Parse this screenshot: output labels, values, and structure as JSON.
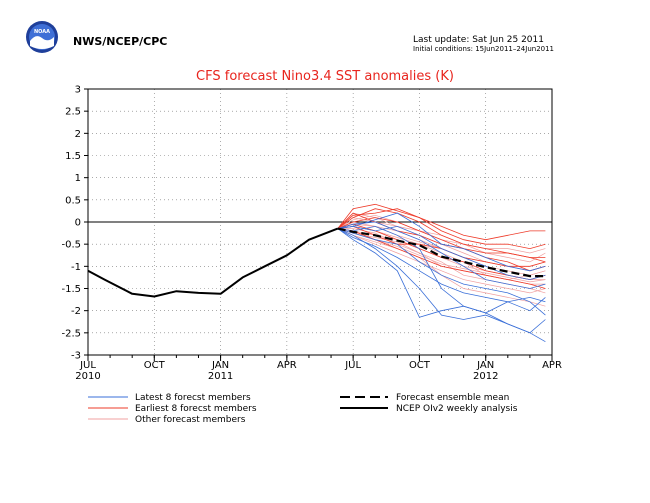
{
  "header": {
    "logo_text": "NOAA",
    "org": "NWS/NCEP/CPC",
    "last_update": "Last update: Sat Jun 25 2011",
    "initial_conditions": "Initial conditions: 15Jun2011–24Jun2011"
  },
  "colors": {
    "latest": "#3a6fd8",
    "earliest": "#ee3b2a",
    "other": "#f0a0a0",
    "mean": "#000000",
    "analysis": "#000000",
    "title": "#e8251e"
  },
  "chart_data": {
    "type": "line",
    "title": "CFS forecast Nino3.4 SST anomalies (K)",
    "ylim": [
      -3,
      3
    ],
    "yticks": [
      -3,
      -2.5,
      -2,
      -1.5,
      -1,
      -0.5,
      0,
      0.5,
      1,
      1.5,
      2,
      2.5,
      3
    ],
    "xlim_months": [
      0,
      21
    ],
    "xticks": [
      {
        "m": 0,
        "label": "JUL",
        "year": "2010"
      },
      {
        "m": 3,
        "label": "OCT",
        "year": ""
      },
      {
        "m": 6,
        "label": "JAN",
        "year": "2011"
      },
      {
        "m": 9,
        "label": "APR",
        "year": ""
      },
      {
        "m": 12,
        "label": "JUL",
        "year": ""
      },
      {
        "m": 15,
        "label": "OCT",
        "year": ""
      },
      {
        "m": 18,
        "label": "JAN",
        "year": "2012"
      },
      {
        "m": 21,
        "label": "APR",
        "year": ""
      }
    ],
    "grid": "dotted",
    "legend_placement": "bottom",
    "analysis": {
      "name": "NCEP OIv2 weekly analysis",
      "x": [
        0,
        0.75,
        2,
        3,
        4,
        5,
        6,
        7,
        8,
        9,
        10,
        11.3
      ],
      "y": [
        -1.1,
        -1.3,
        -1.62,
        -1.68,
        -1.56,
        -1.6,
        -1.62,
        -1.25,
        -1.0,
        -0.75,
        -0.4,
        -0.15
      ]
    },
    "ensemble_mean": {
      "name": "Forecast ensemble mean",
      "x": [
        11.3,
        12,
        13,
        14,
        15,
        16,
        17,
        18,
        19,
        20,
        20.7
      ],
      "y": [
        -0.15,
        -0.22,
        -0.3,
        -0.42,
        -0.52,
        -0.78,
        -0.9,
        -1.02,
        -1.12,
        -1.22,
        -1.22
      ]
    },
    "members": {
      "x": [
        11.3,
        12,
        13,
        14,
        15,
        16,
        17,
        18,
        19,
        20,
        20.7
      ],
      "latest": {
        "name": "Latest 8 forecst members",
        "series": [
          [
            -0.15,
            -0.4,
            -0.7,
            -1.1,
            -2.15,
            -2.0,
            -1.9,
            -2.05,
            -2.3,
            -2.5,
            -2.7
          ],
          [
            -0.15,
            -0.3,
            -0.6,
            -1.0,
            -1.5,
            -2.1,
            -2.2,
            -2.1,
            -2.3,
            -2.5,
            -2.2
          ],
          [
            -0.15,
            -0.2,
            -0.1,
            -0.3,
            -0.6,
            -1.5,
            -1.9,
            -2.05,
            -1.8,
            -1.7,
            -1.8
          ],
          [
            -0.15,
            -0.1,
            0.05,
            0.2,
            -0.1,
            -0.5,
            -0.6,
            -0.8,
            -1.0,
            -1.1,
            -1.0
          ],
          [
            -0.15,
            -0.25,
            -0.4,
            -0.5,
            -0.9,
            -1.2,
            -1.4,
            -1.5,
            -1.6,
            -1.8,
            -2.1
          ],
          [
            -0.15,
            -0.1,
            -0.2,
            -0.1,
            -0.3,
            -0.6,
            -0.8,
            -1.0,
            -1.2,
            -1.3,
            -1.2
          ],
          [
            -0.15,
            -0.35,
            -0.55,
            -0.8,
            -1.1,
            -1.4,
            -1.6,
            -1.7,
            -1.8,
            -2.0,
            -1.7
          ],
          [
            -0.15,
            -0.05,
            0.0,
            -0.2,
            -0.4,
            -0.7,
            -1.0,
            -1.3,
            -1.4,
            -1.5,
            -1.4
          ]
        ]
      },
      "earliest": {
        "name": "Earliest 8 forecst members",
        "series": [
          [
            -0.15,
            0.1,
            0.3,
            0.2,
            0.0,
            -0.3,
            -0.5,
            -0.6,
            -0.7,
            -0.8,
            -0.8
          ],
          [
            -0.15,
            0.3,
            0.4,
            0.25,
            0.1,
            -0.2,
            -0.4,
            -0.5,
            -0.5,
            -0.6,
            -0.5
          ],
          [
            -0.15,
            0.0,
            0.1,
            0.0,
            -0.2,
            -0.4,
            -0.6,
            -0.7,
            -0.7,
            -0.8,
            -0.9
          ],
          [
            -0.15,
            -0.1,
            -0.3,
            -0.5,
            -0.5,
            -0.6,
            -0.8,
            -0.9,
            -1.0,
            -1.0,
            -0.9
          ],
          [
            -0.15,
            0.2,
            0.0,
            -0.2,
            -0.3,
            -0.5,
            -0.6,
            -0.8,
            -0.9,
            -1.1,
            -1.0
          ],
          [
            -0.15,
            -0.2,
            -0.4,
            -0.6,
            -0.8,
            -1.0,
            -1.1,
            -1.2,
            -1.3,
            -1.4,
            -1.5
          ],
          [
            -0.15,
            0.15,
            0.2,
            0.3,
            0.1,
            -0.1,
            -0.3,
            -0.4,
            -0.3,
            -0.2,
            -0.2
          ],
          [
            -0.15,
            -0.05,
            -0.2,
            -0.4,
            -0.6,
            -0.8,
            -0.9,
            -1.1,
            -1.2,
            -1.3,
            -1.2
          ]
        ]
      },
      "other": {
        "name": "Other forecast members",
        "series": [
          [
            -0.15,
            -0.2,
            -0.3,
            -0.4,
            -0.6,
            -0.8,
            -1.0,
            -1.1,
            -1.2,
            -1.3,
            -1.3
          ],
          [
            -0.15,
            0.0,
            -0.1,
            -0.2,
            -0.4,
            -0.6,
            -0.8,
            -1.0,
            -1.1,
            -1.2,
            -1.1
          ],
          [
            -0.15,
            -0.3,
            -0.5,
            -0.7,
            -0.9,
            -1.1,
            -1.3,
            -1.4,
            -1.5,
            -1.6,
            -1.5
          ],
          [
            -0.15,
            0.1,
            0.0,
            -0.1,
            -0.3,
            -0.5,
            -0.7,
            -0.9,
            -1.0,
            -1.0,
            -0.9
          ],
          [
            -0.15,
            -0.1,
            -0.2,
            -0.35,
            -0.5,
            -0.7,
            -0.9,
            -1.2,
            -1.3,
            -1.4,
            -1.4
          ],
          [
            -0.15,
            -0.25,
            -0.35,
            -0.45,
            -0.7,
            -0.9,
            -1.2,
            -1.3,
            -1.4,
            -1.5,
            -1.6
          ],
          [
            -0.15,
            0.05,
            0.15,
            0.0,
            -0.2,
            -0.4,
            -0.5,
            -0.7,
            -0.8,
            -0.9,
            -0.7
          ],
          [
            -0.15,
            -0.15,
            -0.25,
            -0.5,
            -0.7,
            -1.0,
            -1.1,
            -1.2,
            -1.3,
            -1.2,
            -1.1
          ],
          [
            -0.15,
            -0.05,
            -0.1,
            -0.3,
            -0.45,
            -0.6,
            -0.8,
            -0.9,
            -1.0,
            -1.1,
            -1.0
          ],
          [
            -0.15,
            -0.3,
            -0.45,
            -0.6,
            -0.8,
            -1.2,
            -1.5,
            -1.6,
            -1.7,
            -1.8,
            -1.9
          ],
          [
            -0.15,
            0.2,
            0.1,
            -0.1,
            -0.2,
            -0.3,
            -0.5,
            -0.6,
            -0.6,
            -0.7,
            -0.6
          ],
          [
            -0.15,
            -0.2,
            -0.4,
            -0.55,
            -0.75,
            -0.95,
            -1.05,
            -1.15,
            -1.25,
            -1.35,
            -1.3
          ]
        ]
      }
    }
  }
}
